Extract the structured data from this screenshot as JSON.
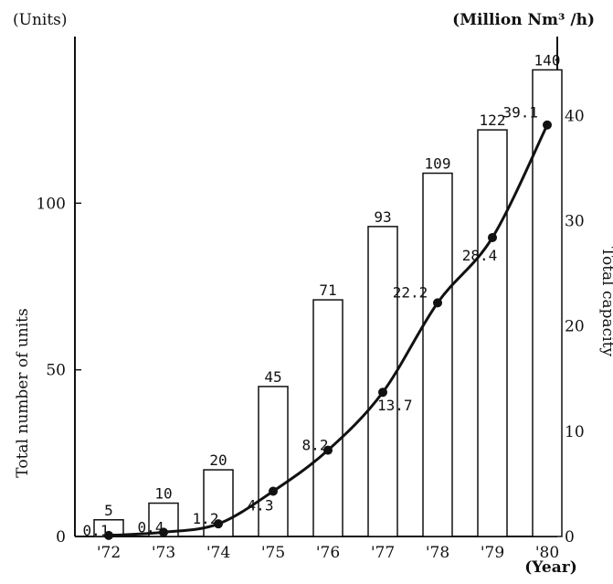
{
  "chart_data": {
    "type": "bar",
    "categories": [
      "'72",
      "'73",
      "'74",
      "'75",
      "'76",
      "'77",
      "'78",
      "'79",
      "'80"
    ],
    "series": [
      {
        "type": "bar",
        "axis": "left",
        "values": [
          5,
          10,
          20,
          45,
          71,
          93,
          109,
          122,
          140
        ],
        "labels": [
          "5",
          "10",
          "20",
          "45",
          "71",
          "93",
          "109",
          "122",
          "140"
        ]
      },
      {
        "type": "line",
        "axis": "right",
        "values": [
          0.1,
          0.4,
          1.2,
          4.3,
          8.2,
          13.7,
          22.2,
          28.4,
          39.1
        ],
        "labels": [
          "0.1",
          "0.4",
          "1.2",
          "4.3",
          "8.2",
          "13.7",
          "22.2",
          "28.4",
          "39.1"
        ]
      }
    ],
    "left_axis": {
      "title": "Total number of units",
      "unit": "(Units)",
      "range": [
        0,
        150
      ],
      "ticks": [
        0,
        50,
        100
      ],
      "tick_labels": [
        "0",
        "50",
        "100"
      ]
    },
    "right_axis": {
      "title": "Total capacity",
      "unit": "(Million Nm³ /h)",
      "range": [
        0,
        47.5
      ],
      "ticks": [
        0,
        10,
        20,
        30,
        40
      ],
      "tick_labels": [
        "0",
        "10",
        "20",
        "30",
        "40"
      ]
    },
    "x_axis_unit": "(Year)",
    "colors": {
      "ink": "#111111",
      "bar_fill": "#ffffff",
      "background": "#ffffff"
    },
    "grid": false,
    "legend": "none"
  }
}
